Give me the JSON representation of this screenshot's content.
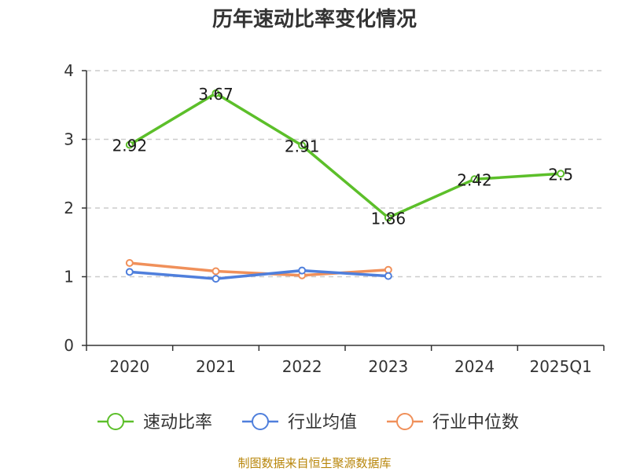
{
  "chart_data": {
    "type": "line",
    "title": "历年速动比率变化情况",
    "categories": [
      "2020",
      "2021",
      "2022",
      "2023",
      "2024",
      "2025Q1"
    ],
    "ylim": [
      0,
      4
    ],
    "yticks": [
      0,
      1,
      2,
      3,
      4
    ],
    "grid": "horizontal-dashed",
    "legend_position": "bottom",
    "series": [
      {
        "name": "速动比率",
        "color": "#5cbf2a",
        "values": [
          2.92,
          3.67,
          2.91,
          1.86,
          2.42,
          2.5
        ],
        "labels": [
          "2.92",
          "3.67",
          "2.91",
          "1.86",
          "2.42",
          "2.5"
        ],
        "show_labels": true
      },
      {
        "name": "行业均值",
        "color": "#4f7fdc",
        "values": [
          1.07,
          0.97,
          1.09,
          1.01,
          null,
          null
        ],
        "show_labels": false
      },
      {
        "name": "行业中位数",
        "color": "#f0905a",
        "values": [
          1.2,
          1.08,
          1.02,
          1.1,
          null,
          null
        ],
        "show_labels": false
      }
    ]
  },
  "source": "制图数据来自恒生聚源数据库"
}
